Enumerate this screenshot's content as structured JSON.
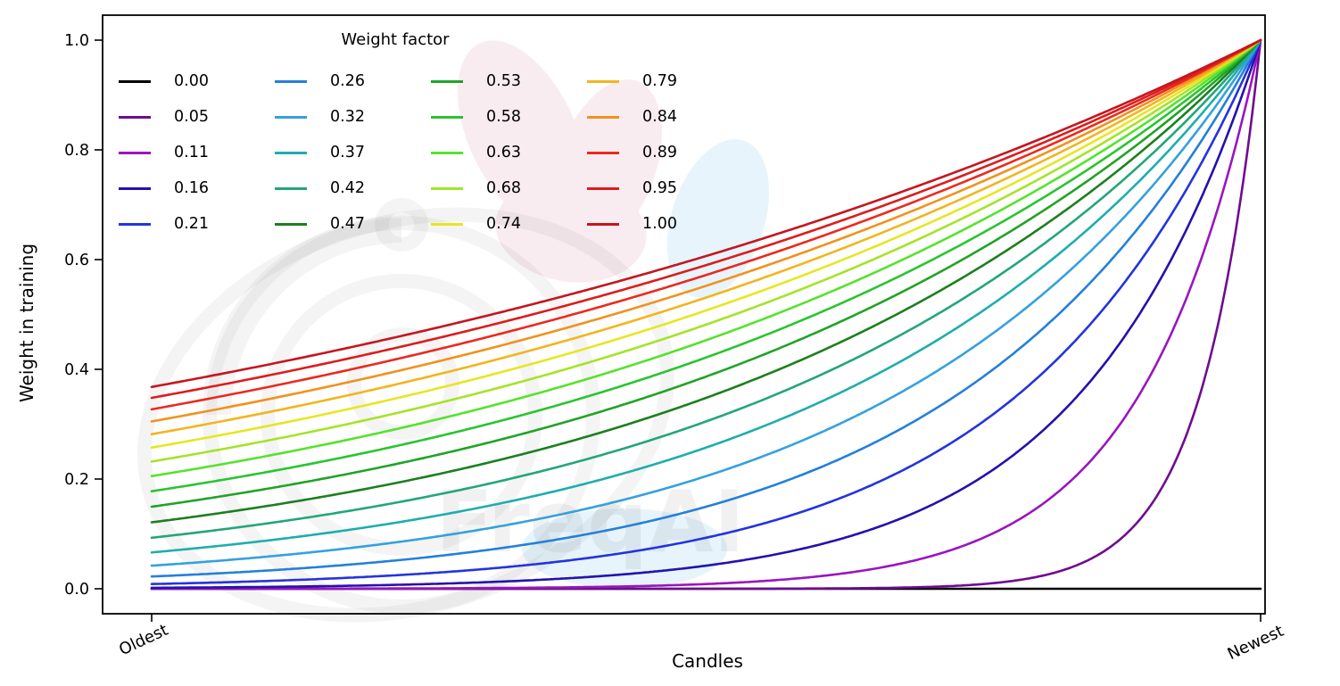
{
  "figure": {
    "background": "#ffffff",
    "watermark_text": "FreqAI"
  },
  "chart_data": {
    "type": "line",
    "title": "",
    "xlabel": "Candles",
    "ylabel": "Weight in training",
    "x_tick_labels": [
      "Oldest",
      "Newest"
    ],
    "x_tick_rotation_deg": 25,
    "y_tick_labels": [
      "0.0",
      "0.2",
      "0.4",
      "0.6",
      "0.8",
      "1.0"
    ],
    "y_tick_values": [
      0,
      0.2,
      0.4,
      0.6,
      0.8,
      1.0
    ],
    "xlim": [
      0,
      1
    ],
    "ylim": [
      0,
      1
    ],
    "grid": false,
    "legend_title": "Weight factor",
    "legend_position": "upper-left",
    "legend_columns": 4,
    "legend_rows": 5,
    "legend_fill_order": "column-major",
    "curve_formula": "weight(x) = exp(-(1 - x) / weight_factor), x in [0,1] from Oldest to Newest; weight_factor = 0 gives a flat line at 0",
    "series": [
      {
        "label": "0.00",
        "weight_factor": 0.0,
        "color": "#000000",
        "value_at_oldest": 0.0,
        "value_at_newest": 0.0
      },
      {
        "label": "0.05",
        "weight_factor": 0.05263,
        "color": "#6f0c8f",
        "value_at_oldest": 0.0,
        "value_at_newest": 1.0
      },
      {
        "label": "0.11",
        "weight_factor": 0.10526,
        "color": "#9a15c0",
        "value_at_oldest": 0.0,
        "value_at_newest": 1.0
      },
      {
        "label": "0.16",
        "weight_factor": 0.15789,
        "color": "#2412ad",
        "value_at_oldest": 0.002,
        "value_at_newest": 1.0
      },
      {
        "label": "0.21",
        "weight_factor": 0.21053,
        "color": "#2433de",
        "value_at_oldest": 0.009,
        "value_at_newest": 1.0
      },
      {
        "label": "0.26",
        "weight_factor": 0.26316,
        "color": "#2480d9",
        "value_at_oldest": 0.022,
        "value_at_newest": 1.0
      },
      {
        "label": "0.32",
        "weight_factor": 0.31579,
        "color": "#35a1de",
        "value_at_oldest": 0.042,
        "value_at_newest": 1.0
      },
      {
        "label": "0.37",
        "weight_factor": 0.36842,
        "color": "#1fadad",
        "value_at_oldest": 0.066,
        "value_at_newest": 1.0
      },
      {
        "label": "0.42",
        "weight_factor": 0.42105,
        "color": "#23a679",
        "value_at_oldest": 0.093,
        "value_at_newest": 1.0
      },
      {
        "label": "0.47",
        "weight_factor": 0.47368,
        "color": "#1c7f1f",
        "value_at_oldest": 0.121,
        "value_at_newest": 1.0
      },
      {
        "label": "0.53",
        "weight_factor": 0.52632,
        "color": "#21a327",
        "value_at_oldest": 0.15,
        "value_at_newest": 1.0
      },
      {
        "label": "0.58",
        "weight_factor": 0.57895,
        "color": "#29c52e",
        "value_at_oldest": 0.178,
        "value_at_newest": 1.0
      },
      {
        "label": "0.63",
        "weight_factor": 0.63158,
        "color": "#55e32c",
        "value_at_oldest": 0.205,
        "value_at_newest": 1.0
      },
      {
        "label": "0.68",
        "weight_factor": 0.68421,
        "color": "#a4e428",
        "value_at_oldest": 0.232,
        "value_at_newest": 1.0
      },
      {
        "label": "0.74",
        "weight_factor": 0.73684,
        "color": "#e7e622",
        "value_at_oldest": 0.257,
        "value_at_newest": 1.0
      },
      {
        "label": "0.79",
        "weight_factor": 0.78947,
        "color": "#f2b51d",
        "value_at_oldest": 0.282,
        "value_at_newest": 1.0
      },
      {
        "label": "0.84",
        "weight_factor": 0.84211,
        "color": "#f2911d",
        "value_at_oldest": 0.305,
        "value_at_newest": 1.0
      },
      {
        "label": "0.89",
        "weight_factor": 0.89474,
        "color": "#eb2a1e",
        "value_at_oldest": 0.327,
        "value_at_newest": 1.0
      },
      {
        "label": "0.95",
        "weight_factor": 0.94737,
        "color": "#dc1d1d",
        "value_at_oldest": 0.348,
        "value_at_newest": 1.0
      },
      {
        "label": "1.00",
        "weight_factor": 1.0,
        "color": "#c5161f",
        "value_at_oldest": 0.368,
        "value_at_newest": 1.0
      }
    ]
  }
}
